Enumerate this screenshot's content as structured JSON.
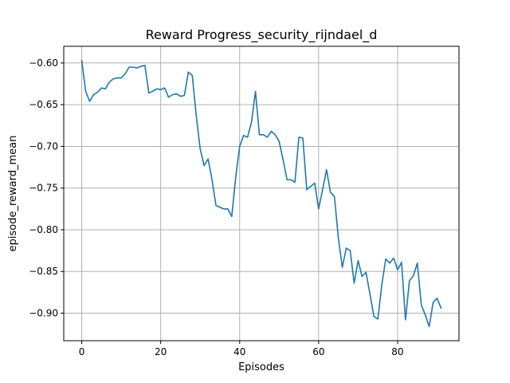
{
  "chart_data": {
    "type": "line",
    "title": "Reward Progress_security_rijndael_d",
    "xlabel": "Episodes",
    "ylabel": "episode_reward_mean",
    "xlim": [
      -4.55,
      95.55
    ],
    "ylim": [
      -0.933,
      -0.58
    ],
    "grid": true,
    "xticks": [
      0,
      20,
      40,
      60,
      80
    ],
    "yticks": [
      -0.6,
      -0.65,
      -0.7,
      -0.75,
      -0.8,
      -0.85,
      -0.9
    ],
    "ytick_labels": [
      "−0.60",
      "−0.65",
      "−0.70",
      "−0.75",
      "−0.80",
      "−0.85",
      "−0.90"
    ],
    "series": [
      {
        "color": "#1f77b4",
        "x": [
          0,
          1,
          2,
          3,
          4,
          5,
          6,
          7,
          8,
          9,
          10,
          11,
          12,
          13,
          14,
          15,
          16,
          17,
          18,
          19,
          20,
          21,
          22,
          23,
          24,
          25,
          26,
          27,
          28,
          29,
          30,
          31,
          32,
          33,
          34,
          35,
          36,
          37,
          38,
          39,
          40,
          41,
          42,
          43,
          44,
          45,
          46,
          47,
          48,
          49,
          50,
          51,
          52,
          53,
          54,
          55,
          56,
          57,
          58,
          59,
          60,
          61,
          62,
          63,
          64,
          65,
          66,
          67,
          68,
          69,
          70,
          71,
          72,
          73,
          74,
          75,
          76,
          77,
          78,
          79,
          80,
          81,
          82,
          83,
          84,
          85,
          86,
          87,
          88,
          89,
          90,
          91
        ],
        "y": [
          -0.597,
          -0.634,
          -0.646,
          -0.638,
          -0.635,
          -0.63,
          -0.631,
          -0.623,
          -0.619,
          -0.618,
          -0.618,
          -0.613,
          -0.605,
          -0.605,
          -0.606,
          -0.604,
          -0.603,
          -0.636,
          -0.634,
          -0.631,
          -0.632,
          -0.63,
          -0.641,
          -0.638,
          -0.637,
          -0.64,
          -0.639,
          -0.611,
          -0.615,
          -0.663,
          -0.703,
          -0.723,
          -0.715,
          -0.74,
          -0.771,
          -0.773,
          -0.775,
          -0.775,
          -0.784,
          -0.737,
          -0.7,
          -0.687,
          -0.689,
          -0.671,
          -0.634,
          -0.686,
          -0.686,
          -0.689,
          -0.682,
          -0.686,
          -0.694,
          -0.716,
          -0.74,
          -0.74,
          -0.743,
          -0.689,
          -0.69,
          -0.752,
          -0.748,
          -0.744,
          -0.775,
          -0.752,
          -0.728,
          -0.755,
          -0.76,
          -0.81,
          -0.845,
          -0.822,
          -0.825,
          -0.864,
          -0.837,
          -0.856,
          -0.851,
          -0.877,
          -0.904,
          -0.907,
          -0.866,
          -0.835,
          -0.84,
          -0.834,
          -0.848,
          -0.839,
          -0.908,
          -0.861,
          -0.855,
          -0.84,
          -0.89,
          -0.902,
          -0.916,
          -0.887,
          -0.882,
          -0.894
        ]
      }
    ]
  }
}
